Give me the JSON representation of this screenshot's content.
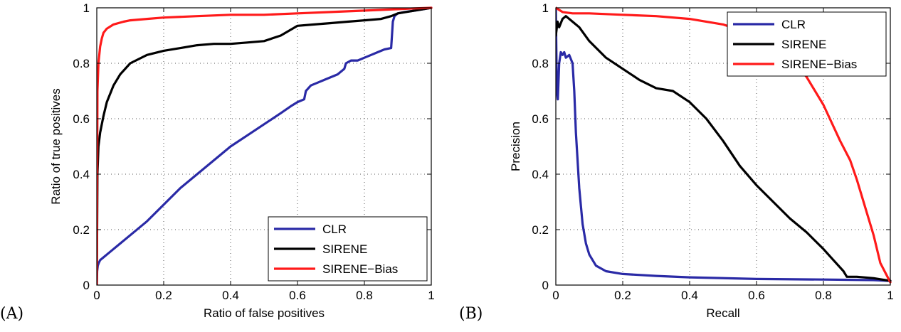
{
  "chart_data": [
    {
      "type": "line",
      "panel_label": "(A)",
      "xlabel": "Ratio of false positives",
      "ylabel": "Ratio of true positives",
      "xlim": [
        0,
        1
      ],
      "ylim": [
        0,
        1
      ],
      "xticks": [
        "0",
        "0.2",
        "0.4",
        "0.6",
        "0.8",
        "1"
      ],
      "yticks": [
        "0",
        "0.2",
        "0.4",
        "0.6",
        "0.8",
        "1"
      ],
      "grid": true,
      "legend_position": "bottom-right",
      "series": [
        {
          "name": "CLR",
          "color": "#2a2aa6",
          "x": [
            0,
            0.001,
            0.003,
            0.006,
            0.01,
            0.02,
            0.04,
            0.07,
            0.1,
            0.15,
            0.2,
            0.25,
            0.3,
            0.35,
            0.4,
            0.45,
            0.5,
            0.55,
            0.58,
            0.6,
            0.61,
            0.62,
            0.625,
            0.64,
            0.66,
            0.68,
            0.7,
            0.72,
            0.74,
            0.745,
            0.76,
            0.78,
            0.8,
            0.82,
            0.84,
            0.86,
            0.88,
            0.885,
            0.89,
            0.9,
            0.92,
            0.95,
            1.0
          ],
          "y": [
            0,
            0.05,
            0.07,
            0.08,
            0.09,
            0.1,
            0.12,
            0.15,
            0.18,
            0.23,
            0.29,
            0.35,
            0.4,
            0.45,
            0.5,
            0.54,
            0.58,
            0.62,
            0.645,
            0.66,
            0.665,
            0.67,
            0.7,
            0.72,
            0.73,
            0.74,
            0.75,
            0.76,
            0.78,
            0.8,
            0.81,
            0.81,
            0.82,
            0.83,
            0.84,
            0.85,
            0.855,
            0.95,
            0.97,
            0.98,
            0.985,
            0.99,
            1.0
          ]
        },
        {
          "name": "SIRENE",
          "color": "#000000",
          "x": [
            0,
            0.002,
            0.005,
            0.01,
            0.02,
            0.03,
            0.05,
            0.07,
            0.1,
            0.15,
            0.2,
            0.25,
            0.3,
            0.35,
            0.4,
            0.45,
            0.5,
            0.55,
            0.6,
            0.65,
            0.7,
            0.75,
            0.8,
            0.85,
            0.88,
            0.9,
            0.95,
            1.0
          ],
          "y": [
            0,
            0.4,
            0.5,
            0.55,
            0.61,
            0.66,
            0.72,
            0.76,
            0.8,
            0.83,
            0.845,
            0.855,
            0.865,
            0.87,
            0.87,
            0.875,
            0.88,
            0.9,
            0.935,
            0.94,
            0.945,
            0.95,
            0.955,
            0.96,
            0.97,
            0.98,
            0.99,
            1.0
          ]
        },
        {
          "name": "SIRENE−Bias",
          "color": "#ff1a1a",
          "x": [
            0,
            0.002,
            0.005,
            0.01,
            0.015,
            0.02,
            0.03,
            0.05,
            0.08,
            0.1,
            0.15,
            0.2,
            0.3,
            0.4,
            0.5,
            0.6,
            0.7,
            0.8,
            0.9,
            0.95,
            1.0
          ],
          "y": [
            0,
            0.7,
            0.8,
            0.86,
            0.89,
            0.91,
            0.925,
            0.94,
            0.95,
            0.955,
            0.96,
            0.965,
            0.97,
            0.975,
            0.975,
            0.98,
            0.985,
            0.99,
            0.995,
            0.998,
            1.0
          ]
        }
      ]
    },
    {
      "type": "line",
      "panel_label": "(B)",
      "xlabel": "Recall",
      "ylabel": "Precision",
      "xlim": [
        0,
        1
      ],
      "ylim": [
        0,
        1
      ],
      "xticks": [
        "0",
        "0.2",
        "0.4",
        "0.6",
        "0.8",
        "1"
      ],
      "yticks": [
        "0",
        "0.2",
        "0.4",
        "0.6",
        "0.8",
        "1"
      ],
      "grid": true,
      "legend_position": "top-right",
      "series": [
        {
          "name": "CLR",
          "color": "#2a2aa6",
          "x": [
            0,
            0.003,
            0.006,
            0.01,
            0.015,
            0.02,
            0.025,
            0.03,
            0.04,
            0.05,
            0.055,
            0.06,
            0.07,
            0.08,
            0.09,
            0.1,
            0.12,
            0.15,
            0.2,
            0.3,
            0.4,
            0.6,
            0.8,
            0.95,
            1.0
          ],
          "y": [
            1.0,
            0.7,
            0.67,
            0.8,
            0.84,
            0.83,
            0.84,
            0.82,
            0.83,
            0.8,
            0.7,
            0.55,
            0.35,
            0.22,
            0.15,
            0.11,
            0.07,
            0.05,
            0.04,
            0.033,
            0.028,
            0.022,
            0.02,
            0.018,
            0.015
          ]
        },
        {
          "name": "SIRENE",
          "color": "#000000",
          "x": [
            0,
            0.005,
            0.01,
            0.02,
            0.03,
            0.05,
            0.07,
            0.1,
            0.15,
            0.2,
            0.25,
            0.3,
            0.35,
            0.4,
            0.45,
            0.5,
            0.55,
            0.6,
            0.65,
            0.7,
            0.75,
            0.8,
            0.83,
            0.86,
            0.87,
            0.9,
            0.95,
            1.0
          ],
          "y": [
            0.9,
            0.95,
            0.93,
            0.96,
            0.97,
            0.95,
            0.93,
            0.88,
            0.82,
            0.78,
            0.74,
            0.71,
            0.7,
            0.66,
            0.6,
            0.52,
            0.43,
            0.36,
            0.3,
            0.24,
            0.19,
            0.13,
            0.09,
            0.05,
            0.03,
            0.03,
            0.025,
            0.015
          ]
        },
        {
          "name": "SIRENE−Bias",
          "color": "#ff1a1a",
          "x": [
            0,
            0.02,
            0.05,
            0.1,
            0.2,
            0.3,
            0.4,
            0.5,
            0.55,
            0.6,
            0.65,
            0.7,
            0.75,
            0.8,
            0.85,
            0.88,
            0.9,
            0.92,
            0.95,
            0.97,
            1.0
          ],
          "y": [
            1.0,
            0.985,
            0.98,
            0.98,
            0.975,
            0.97,
            0.96,
            0.94,
            0.92,
            0.89,
            0.86,
            0.82,
            0.75,
            0.65,
            0.52,
            0.45,
            0.38,
            0.3,
            0.18,
            0.08,
            0.01
          ]
        }
      ]
    }
  ]
}
